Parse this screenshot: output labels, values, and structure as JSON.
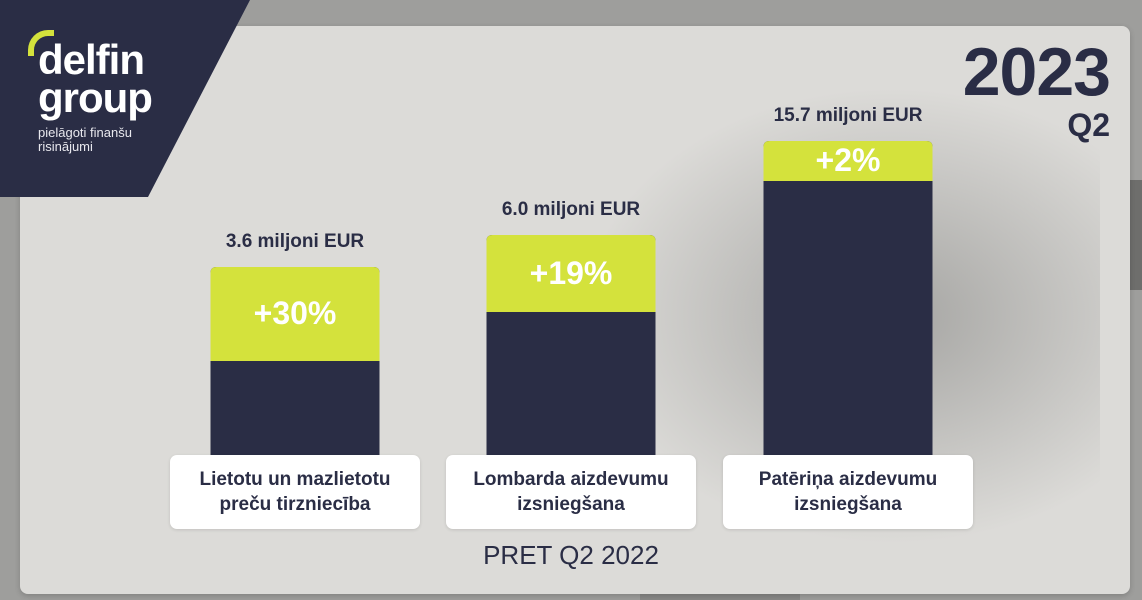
{
  "brand": {
    "line1": "delfin",
    "line2": "group",
    "tagline": "pielāgoti finanšu risinājumi"
  },
  "period": {
    "year": "2023",
    "quarter": "Q2"
  },
  "footer": "PRET Q2 2022",
  "colors": {
    "navy": "#2a2d45",
    "lime": "#d4e23c",
    "card": "#dcdbd8"
  },
  "chart_data": {
    "type": "bar",
    "categories": [
      "Lietotu un mazlietotu preču tirzniecība",
      "Lombarda aizdevumu izsniegšana",
      "Patēriņa aizdevumu izsniegšana"
    ],
    "values": [
      3.6,
      6.0,
      15.7
    ],
    "value_labels": [
      "3.6 miljoni EUR",
      "6.0 miljoni EUR",
      "15.7 miljoni EUR"
    ],
    "growth": [
      "+30%",
      "+19%",
      "+2%"
    ],
    "unit": "miljoni EUR",
    "grid": false,
    "legend": "none"
  }
}
